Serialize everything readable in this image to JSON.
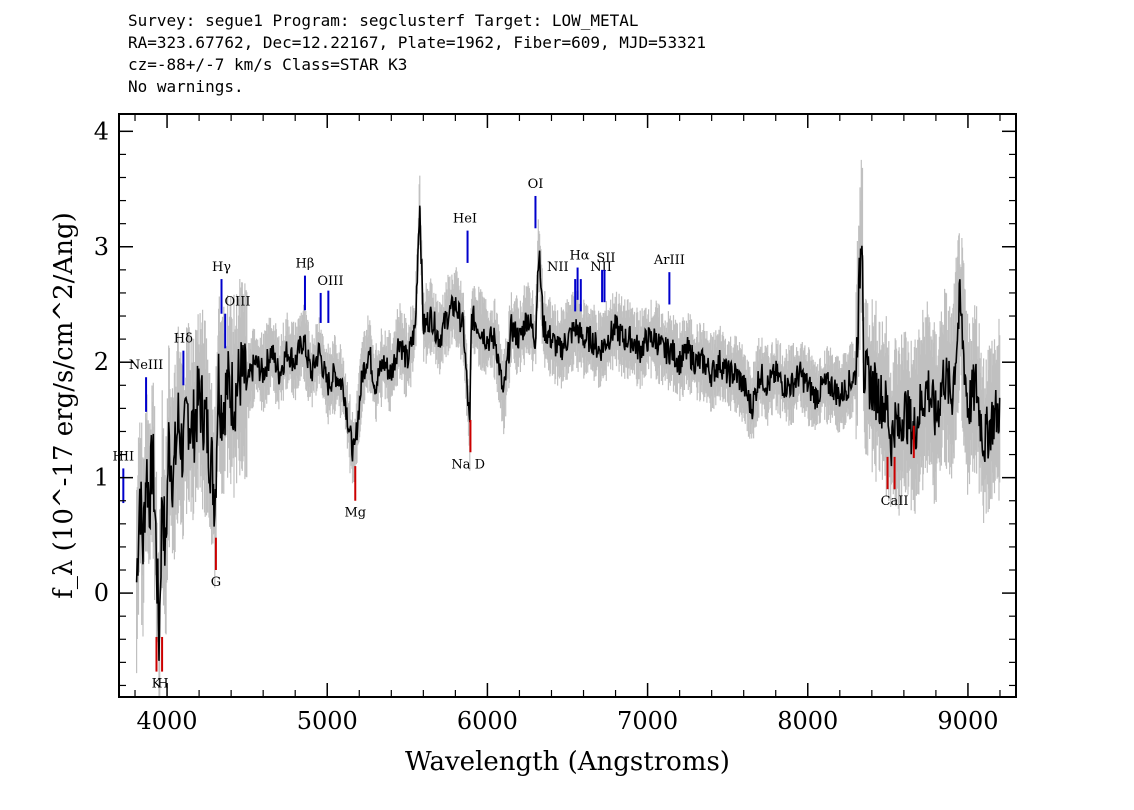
{
  "header": {
    "line1": "Survey: segue1 Program: segclusterf Target: LOW_METAL",
    "line2": "RA=323.67762, Dec=12.22167, Plate=1962, Fiber=609, MJD=53321",
    "line3": "cz=-88+/-7 km/s Class=STAR K3",
    "line4": "No warnings."
  },
  "colors": {
    "spectrum": "#000000",
    "error_band": "#c0c0c0",
    "emission_marker": "#0000cc",
    "absorption_marker": "#cc0000"
  },
  "chart_data": {
    "type": "line",
    "xlabel": "Wavelength (Angstroms)",
    "ylabel": "f_λ (10^-17 erg/s/cm^2/Ang)",
    "xlim": [
      3700,
      9300
    ],
    "ylim": [
      -0.9,
      4.15
    ],
    "x_ticks": [
      4000,
      5000,
      6000,
      7000,
      8000,
      9000
    ],
    "y_ticks": [
      0,
      1,
      2,
      3,
      4
    ],
    "grid": false,
    "series": [
      {
        "x": [
          3810,
          3830,
          3850,
          3870,
          3890,
          3910,
          3930,
          3950,
          3970,
          3990,
          4010,
          4040,
          4070,
          4100,
          4130,
          4160,
          4200,
          4240,
          4280,
          4300,
          4320,
          4340,
          4380,
          4420,
          4460,
          4500,
          4550,
          4600,
          4650,
          4700,
          4750,
          4800,
          4850,
          4900,
          4950,
          5000,
          5050,
          5100,
          5150,
          5170,
          5190,
          5220,
          5260,
          5300,
          5350,
          5400,
          5450,
          5500,
          5550,
          5577,
          5600,
          5650,
          5700,
          5750,
          5800,
          5850,
          5890,
          5900,
          5950,
          6000,
          6050,
          6100,
          6150,
          6200,
          6250,
          6300,
          6320,
          6350,
          6400,
          6450,
          6500,
          6550,
          6600,
          6650,
          6700,
          6750,
          6800,
          6850,
          6900,
          6950,
          7000,
          7050,
          7100,
          7150,
          7200,
          7250,
          7300,
          7350,
          7400,
          7450,
          7500,
          7550,
          7600,
          7650,
          7700,
          7750,
          7800,
          7850,
          7900,
          7950,
          8000,
          8050,
          8100,
          8150,
          8200,
          8250,
          8300,
          8340,
          8350,
          8400,
          8450,
          8498,
          8520,
          8542,
          8570,
          8600,
          8662,
          8700,
          8750,
          8800,
          8850,
          8900,
          8950,
          9000,
          9050,
          9100,
          9150,
          9200
        ],
        "y": [
          0.1,
          0.9,
          0.4,
          1.1,
          0.8,
          1.2,
          0.5,
          -0.4,
          0.9,
          0.3,
          1.3,
          1.0,
          1.5,
          1.2,
          1.6,
          1.4,
          1.7,
          1.5,
          1.1,
          0.8,
          1.9,
          1.6,
          1.8,
          1.7,
          1.9,
          1.8,
          2.0,
          1.9,
          2.1,
          1.9,
          2.1,
          2.0,
          2.2,
          1.9,
          2.1,
          1.8,
          1.9,
          1.8,
          1.3,
          1.2,
          1.5,
          1.9,
          2.1,
          1.8,
          2.0,
          1.9,
          2.2,
          2.0,
          2.3,
          3.4,
          2.3,
          2.4,
          2.2,
          2.4,
          2.5,
          2.3,
          1.4,
          2.4,
          2.3,
          2.2,
          2.2,
          1.7,
          2.3,
          2.2,
          2.4,
          2.2,
          3.0,
          2.3,
          2.2,
          2.1,
          2.2,
          2.3,
          2.2,
          2.2,
          2.1,
          2.2,
          2.3,
          2.2,
          2.2,
          2.1,
          2.2,
          2.2,
          2.1,
          2.1,
          2.0,
          2.1,
          2.0,
          2.0,
          1.9,
          2.0,
          1.9,
          1.9,
          1.8,
          1.6,
          1.9,
          1.8,
          1.9,
          1.8,
          1.8,
          1.9,
          1.8,
          1.7,
          1.8,
          1.8,
          1.7,
          1.8,
          1.9,
          3.3,
          1.9,
          1.8,
          1.7,
          1.6,
          1.3,
          1.5,
          1.4,
          1.6,
          1.4,
          1.6,
          1.8,
          1.5,
          1.9,
          1.7,
          2.5,
          1.6,
          1.8,
          1.3,
          1.5,
          1.6
        ]
      }
    ],
    "line_markers": [
      {
        "label": "HII",
        "x": 3727,
        "kind": "emission",
        "y_top": 1.08,
        "y_bottom": 0.78,
        "label_pos": "above",
        "label_x": 3727
      },
      {
        "label": "NeIII",
        "x": 3869,
        "kind": "emission",
        "y_top": 1.87,
        "y_bottom": 1.57,
        "label_pos": "above",
        "label_x": 3869
      },
      {
        "label": "Hδ",
        "x": 4102,
        "kind": "emission",
        "y_top": 2.1,
        "y_bottom": 1.8,
        "label_pos": "above",
        "label_x": 4102
      },
      {
        "label": "Hγ",
        "x": 4340,
        "kind": "emission",
        "y_top": 2.72,
        "y_bottom": 2.42,
        "label_pos": "above",
        "label_x": 4340
      },
      {
        "label": "OIII",
        "x": 4363,
        "kind": "emission",
        "y_top": 2.42,
        "y_bottom": 2.12,
        "label_pos": "above",
        "label_x": 4440
      },
      {
        "label": "Hβ",
        "x": 4861,
        "kind": "emission",
        "y_top": 2.75,
        "y_bottom": 2.45,
        "label_pos": "above",
        "label_x": 4861
      },
      {
        "label": "OIII",
        "x": 4959,
        "kind": "emission",
        "y_top": 2.6,
        "y_bottom": 2.34,
        "label_pos": "above",
        "label_x": 5020
      },
      {
        "label": "",
        "x": 5007,
        "kind": "emission",
        "y_top": 2.62,
        "y_bottom": 2.34,
        "label_pos": "none",
        "label_x": 5007
      },
      {
        "label": "HeI",
        "x": 5876,
        "kind": "emission",
        "y_top": 3.14,
        "y_bottom": 2.86,
        "label_pos": "above",
        "label_x": 5860
      },
      {
        "label": "OI",
        "x": 6300,
        "kind": "emission",
        "y_top": 3.44,
        "y_bottom": 3.16,
        "label_pos": "above",
        "label_x": 6300
      },
      {
        "label": "NII",
        "x": 6548,
        "kind": "emission",
        "y_top": 2.72,
        "y_bottom": 2.44,
        "label_pos": "above",
        "label_x": 6440
      },
      {
        "label": "Hα",
        "x": 6563,
        "kind": "emission",
        "y_top": 2.82,
        "y_bottom": 2.54,
        "label_pos": "above",
        "label_x": 6575
      },
      {
        "label": "NII",
        "x": 6583,
        "kind": "emission",
        "y_top": 2.72,
        "y_bottom": 2.44,
        "label_pos": "above",
        "label_x": 6710
      },
      {
        "label": "SII",
        "x": 6716,
        "kind": "emission",
        "y_top": 2.8,
        "y_bottom": 2.52,
        "label_pos": "above",
        "label_x": 6740
      },
      {
        "label": "",
        "x": 6731,
        "kind": "emission",
        "y_top": 2.8,
        "y_bottom": 2.52,
        "label_pos": "none",
        "label_x": 6731
      },
      {
        "label": "ArIII",
        "x": 7136,
        "kind": "emission",
        "y_top": 2.78,
        "y_bottom": 2.5,
        "label_pos": "above",
        "label_x": 7136
      },
      {
        "label": "K",
        "x": 3934,
        "kind": "absorption",
        "y_top": -0.38,
        "y_bottom": -0.68,
        "label_pos": "below",
        "label_x": 3934
      },
      {
        "label": "H",
        "x": 3969,
        "kind": "absorption",
        "y_top": -0.38,
        "y_bottom": -0.68,
        "label_pos": "below",
        "label_x": 3974
      },
      {
        "label": "G",
        "x": 4305,
        "kind": "absorption",
        "y_top": 0.48,
        "y_bottom": 0.2,
        "label_pos": "below",
        "label_x": 4305
      },
      {
        "label": "Mg",
        "x": 5175,
        "kind": "absorption",
        "y_top": 1.1,
        "y_bottom": 0.8,
        "label_pos": "below",
        "label_x": 5175
      },
      {
        "label": "Na D",
        "x": 5894,
        "kind": "absorption",
        "y_top": 1.5,
        "y_bottom": 1.22,
        "label_pos": "below",
        "label_x": 5880
      },
      {
        "label": "CaII",
        "x": 8498,
        "kind": "absorption",
        "y_top": 1.18,
        "y_bottom": 0.9,
        "label_pos": "below",
        "label_x": 8542
      },
      {
        "label": "",
        "x": 8542,
        "kind": "absorption",
        "y_top": 1.18,
        "y_bottom": 0.9,
        "label_pos": "none",
        "label_x": 8542
      },
      {
        "label": "",
        "x": 8662,
        "kind": "absorption",
        "y_top": 1.45,
        "y_bottom": 1.17,
        "label_pos": "none",
        "label_x": 8662
      }
    ]
  }
}
